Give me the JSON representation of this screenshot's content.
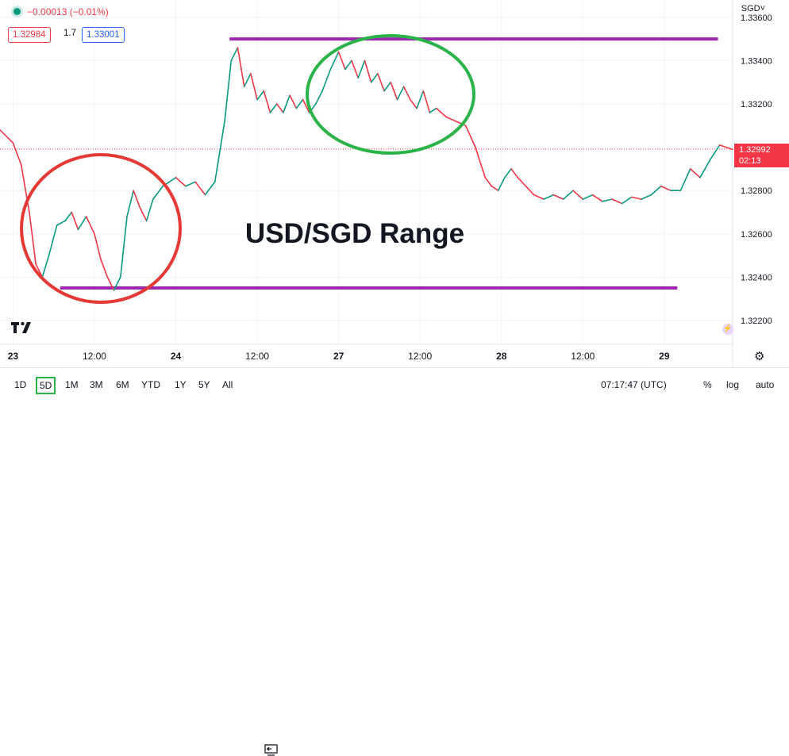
{
  "header": {
    "change": "−0.00013 (−0.01%)",
    "bid": "1.32984",
    "spread": "1.7",
    "ask": "1.33001"
  },
  "axis": {
    "currency_label": "SGD˅"
  },
  "price_tag": {
    "price": "1.32992",
    "countdown": "02:13"
  },
  "annotation": "USD/SGD Range",
  "timeframes": [
    "1D",
    "5D",
    "1M",
    "3M",
    "6M",
    "YTD",
    "1Y",
    "5Y",
    "All"
  ],
  "active_timeframe": "5D",
  "clock": "07:17:47 (UTC)",
  "scale_buttons": {
    "percent": "%",
    "log": "log",
    "auto": "auto"
  },
  "colors": {
    "up": "#089981",
    "down": "#f23645",
    "range_line": "#9c27b0",
    "circle_red": "#e53935",
    "circle_green": "#2bb34a"
  },
  "icons": [
    "tradingview-logo-icon",
    "settings-gear-icon",
    "compare-icon",
    "advisor-icon"
  ],
  "chart_data": {
    "type": "line",
    "title": "",
    "symbol": "USD/SGD",
    "y_tick_labels": [
      "1.33600",
      "1.33400",
      "1.33200",
      "1.32800",
      "1.32600",
      "1.32400",
      "1.32200"
    ],
    "ylim": [
      1.3209,
      1.3368
    ],
    "x_tick_labels": [
      "23",
      "12:00",
      "24",
      "12:00",
      "27",
      "12:00",
      "28",
      "12:00",
      "29"
    ],
    "x_tick_values": [
      0,
      0.5,
      1,
      1.5,
      2,
      2.5,
      3,
      3.5,
      4
    ],
    "xlim": [
      -0.08,
      4.42
    ],
    "gridlines": true,
    "series": [
      {
        "x": [
          -0.08,
          0.0,
          0.05,
          0.1,
          0.14,
          0.18,
          0.22,
          0.27,
          0.32,
          0.36,
          0.4,
          0.45,
          0.5,
          0.54,
          0.58,
          0.62,
          0.66,
          0.7,
          0.74,
          0.78,
          0.82,
          0.86,
          0.92,
          1.0,
          1.06,
          1.12,
          1.18,
          1.24,
          1.3,
          1.34,
          1.38,
          1.42,
          1.46,
          1.5,
          1.54,
          1.58,
          1.62,
          1.66,
          1.7,
          1.74,
          1.78,
          1.82,
          1.86,
          1.9,
          1.95,
          2.0,
          2.04,
          2.08,
          2.12,
          2.16,
          2.2,
          2.24,
          2.28,
          2.32,
          2.36,
          2.4,
          2.44,
          2.48,
          2.52,
          2.56,
          2.6,
          2.66,
          2.72,
          2.78,
          2.84,
          2.9,
          2.94,
          2.98,
          3.02,
          3.06,
          3.1,
          3.15,
          3.2,
          3.26,
          3.32,
          3.38,
          3.44,
          3.5,
          3.56,
          3.62,
          3.68,
          3.74,
          3.8,
          3.86,
          3.92,
          3.98,
          4.04,
          4.1,
          4.16,
          4.22,
          4.28,
          4.34,
          4.42
        ],
        "y": [
          1.3308,
          1.3302,
          1.3292,
          1.327,
          1.3246,
          1.324,
          1.325,
          1.3264,
          1.3266,
          1.327,
          1.3262,
          1.3268,
          1.326,
          1.3248,
          1.324,
          1.3234,
          1.324,
          1.3268,
          1.328,
          1.3272,
          1.3266,
          1.3276,
          1.3282,
          1.3286,
          1.3282,
          1.3284,
          1.3278,
          1.3284,
          1.3312,
          1.334,
          1.3346,
          1.3328,
          1.3334,
          1.3322,
          1.3326,
          1.3316,
          1.332,
          1.3316,
          1.3324,
          1.3318,
          1.3322,
          1.3316,
          1.332,
          1.3326,
          1.3336,
          1.3344,
          1.3336,
          1.334,
          1.3332,
          1.334,
          1.333,
          1.3334,
          1.3326,
          1.333,
          1.3322,
          1.3328,
          1.3322,
          1.3318,
          1.3326,
          1.3316,
          1.3318,
          1.3314,
          1.3312,
          1.331,
          1.33,
          1.3286,
          1.3282,
          1.328,
          1.3286,
          1.329,
          1.3286,
          1.3282,
          1.3278,
          1.3276,
          1.3278,
          1.3276,
          1.328,
          1.3276,
          1.3278,
          1.3275,
          1.3276,
          1.3274,
          1.3277,
          1.3276,
          1.3278,
          1.3282,
          1.328,
          1.328,
          1.329,
          1.3286,
          1.3294,
          1.3301,
          1.3299
        ]
      }
    ],
    "range_lines": [
      {
        "price": 1.335,
        "x_start": 1.33,
        "x_end": 4.33
      },
      {
        "price": 1.3235,
        "x_start": 0.29,
        "x_end": 4.08
      }
    ],
    "last_price": 1.32992
  }
}
